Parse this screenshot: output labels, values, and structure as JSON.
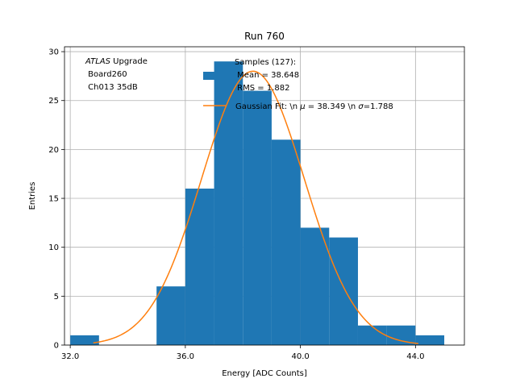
{
  "chart_data": {
    "type": "bar",
    "title": "Run 760",
    "xlabel": "Energy [ADC Counts]",
    "ylabel": "Entries",
    "xlim": [
      31.8,
      45.7
    ],
    "ylim": [
      0,
      30.5
    ],
    "grid": true,
    "xticks": [
      32.0,
      36.0,
      40.0,
      44.0
    ],
    "xtick_labels": [
      "32.0",
      "36.0",
      "40.0",
      "44.0"
    ],
    "yticks": [
      0,
      5,
      10,
      15,
      20,
      25,
      30
    ],
    "ytick_labels": [
      "0",
      "5",
      "10",
      "15",
      "20",
      "25",
      "30"
    ],
    "histogram": {
      "name": "Samples (127):",
      "color": "#1f77b4",
      "bin_edges": [
        32,
        33,
        34,
        35,
        36,
        37,
        38,
        39,
        40,
        41,
        42,
        43,
        44,
        45
      ],
      "counts": [
        1,
        0,
        0,
        6,
        16,
        29,
        26,
        21,
        12,
        11,
        2,
        2,
        1
      ]
    },
    "fit": {
      "name": "Gaussian Fit",
      "color": "#ff7f0e",
      "mu": 38.349,
      "sigma": 1.788,
      "amplitude": 28.0,
      "x_range": [
        32.8,
        44.1
      ]
    },
    "legend": {
      "position": "top-right",
      "entries": [
        {
          "series": "histogram",
          "lines": [
            "Samples (127):",
            " Mean = 38.648",
            " RMS = 1.882"
          ]
        },
        {
          "series": "fit",
          "prefix": "Gaussian Fit: \\n ",
          "mu_symbol": "μ",
          "mu_text": " = 38.349 \\n ",
          "sigma_symbol": "σ",
          "sigma_text": "=1.788"
        }
      ]
    },
    "annotation": {
      "position": "top-left",
      "atlas": "ATLAS",
      "atlas_rest": " Upgrade",
      "line2": " Board260",
      "line3": " Ch013 35dB"
    }
  }
}
